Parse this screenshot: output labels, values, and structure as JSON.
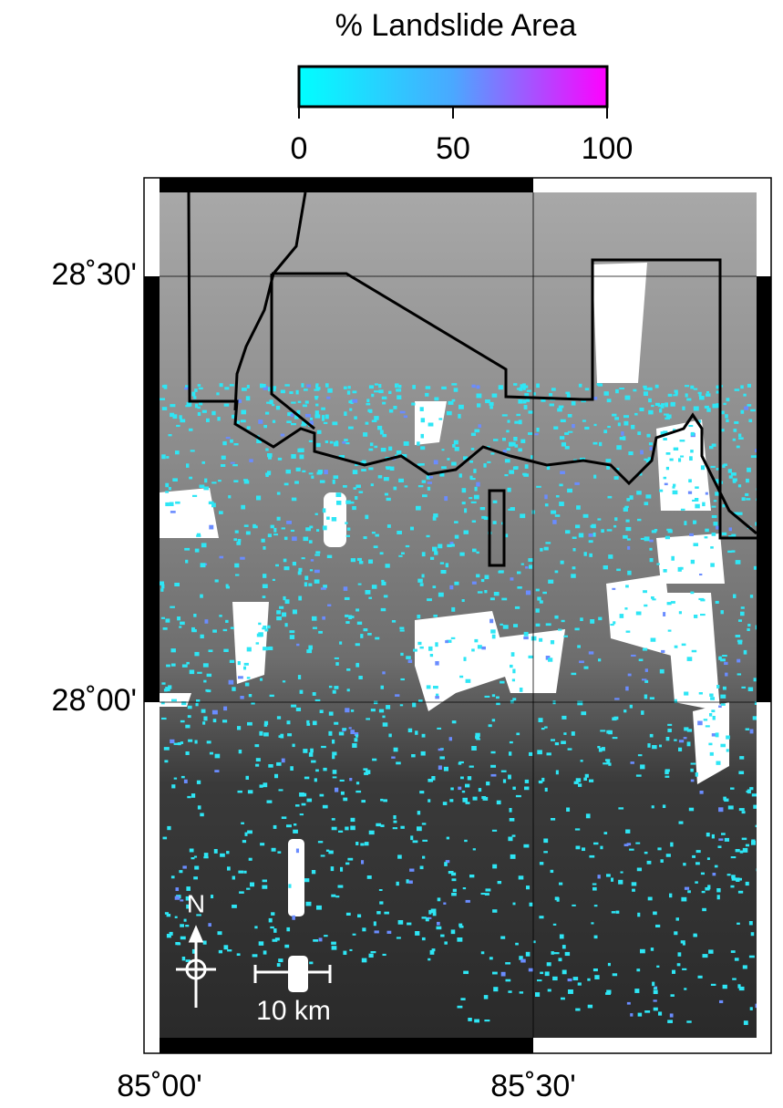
{
  "colorbar": {
    "label": "% Landslide Area",
    "range": [
      0,
      100
    ],
    "ticks": [
      0,
      50,
      100
    ],
    "colors": [
      "#00ffff",
      "#4aa8ff",
      "#ff00ff"
    ]
  },
  "map": {
    "lat_labels": [
      "28˚30'",
      "28˚00'"
    ],
    "lon_labels": [
      "85˚00'",
      "85˚30'"
    ],
    "north_label": "N",
    "scale_label": "10 km"
  }
}
